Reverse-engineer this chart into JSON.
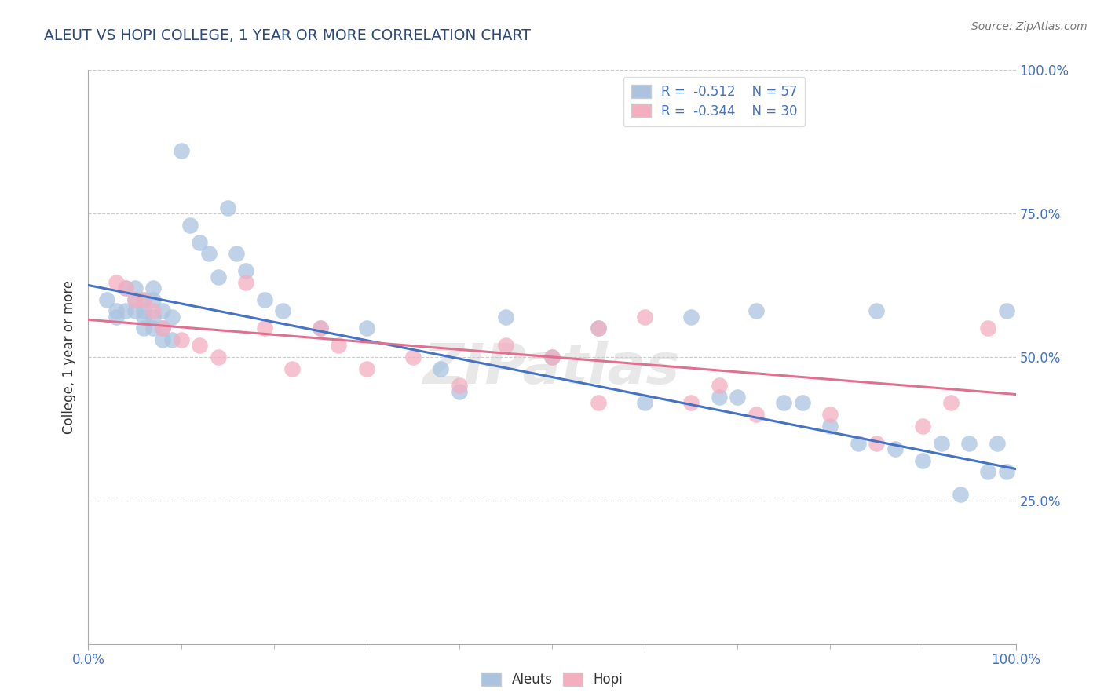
{
  "title": "ALEUT VS HOPI COLLEGE, 1 YEAR OR MORE CORRELATION CHART",
  "source_text": "Source: ZipAtlas.com",
  "ylabel_text": "College, 1 year or more",
  "xlim": [
    0.0,
    1.0
  ],
  "ylim": [
    0.0,
    1.0
  ],
  "xtick_labels": [
    "0.0%",
    "100.0%"
  ],
  "ytick_labels": [
    "25.0%",
    "50.0%",
    "75.0%",
    "100.0%"
  ],
  "ytick_positions": [
    0.25,
    0.5,
    0.75,
    1.0
  ],
  "aleuts_color": "#aac4e0",
  "hopi_color": "#f4aec0",
  "line_aleuts_color": "#4472c4",
  "line_hopi_color": "#e07090",
  "title_color": "#2d4a7a",
  "label_color": "#4472c4",
  "source_color": "#777777",
  "grid_color": "#cccccc",
  "watermark": "ZIPatlas",
  "aleuts_x": [
    0.02,
    0.03,
    0.04,
    0.05,
    0.05,
    0.05,
    0.06,
    0.06,
    0.07,
    0.07,
    0.07,
    0.08,
    0.08,
    0.09,
    0.1,
    0.11,
    0.12,
    0.13,
    0.14,
    0.15,
    0.16,
    0.17,
    0.19,
    0.21,
    0.25,
    0.3,
    0.38,
    0.4,
    0.45,
    0.5,
    0.55,
    0.6,
    0.65,
    0.68,
    0.7,
    0.72,
    0.75,
    0.77,
    0.8,
    0.83,
    0.85,
    0.87,
    0.9,
    0.92,
    0.94,
    0.95,
    0.97,
    0.98,
    0.99,
    0.99,
    0.03,
    0.04,
    0.06,
    0.06,
    0.07,
    0.08,
    0.09
  ],
  "aleuts_y": [
    0.6,
    0.57,
    0.62,
    0.6,
    0.62,
    0.58,
    0.58,
    0.6,
    0.57,
    0.6,
    0.62,
    0.58,
    0.55,
    0.57,
    0.86,
    0.73,
    0.7,
    0.68,
    0.64,
    0.76,
    0.68,
    0.65,
    0.6,
    0.58,
    0.55,
    0.55,
    0.48,
    0.44,
    0.57,
    0.5,
    0.55,
    0.42,
    0.57,
    0.43,
    0.43,
    0.58,
    0.42,
    0.42,
    0.38,
    0.35,
    0.58,
    0.34,
    0.32,
    0.35,
    0.26,
    0.35,
    0.3,
    0.35,
    0.3,
    0.58,
    0.58,
    0.58,
    0.57,
    0.55,
    0.55,
    0.53,
    0.53
  ],
  "hopi_x": [
    0.03,
    0.04,
    0.05,
    0.06,
    0.07,
    0.08,
    0.1,
    0.12,
    0.14,
    0.17,
    0.19,
    0.22,
    0.25,
    0.27,
    0.3,
    0.35,
    0.4,
    0.45,
    0.55,
    0.65,
    0.68,
    0.72,
    0.8,
    0.85,
    0.9,
    0.93,
    0.97,
    0.5,
    0.55,
    0.6
  ],
  "hopi_y": [
    0.63,
    0.62,
    0.6,
    0.6,
    0.58,
    0.55,
    0.53,
    0.52,
    0.5,
    0.63,
    0.55,
    0.48,
    0.55,
    0.52,
    0.48,
    0.5,
    0.45,
    0.52,
    0.42,
    0.42,
    0.45,
    0.4,
    0.4,
    0.35,
    0.38,
    0.42,
    0.55,
    0.5,
    0.55,
    0.57
  ],
  "aleuts_line_x": [
    0.0,
    1.0
  ],
  "aleuts_line_y": [
    0.625,
    0.305
  ],
  "hopi_line_x": [
    0.0,
    1.0
  ],
  "hopi_line_y": [
    0.565,
    0.435
  ]
}
